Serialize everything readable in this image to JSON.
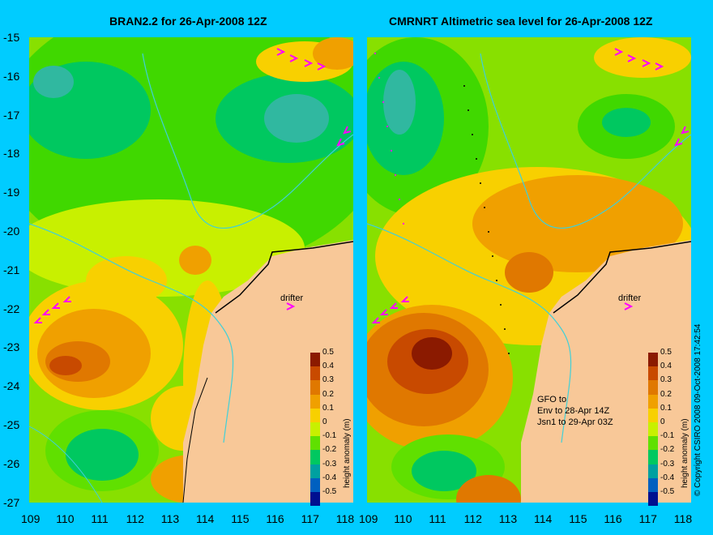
{
  "left_panel": {
    "title": "BRAN2.2 for 26-Apr-2008 12Z",
    "drifter_label": "drifter"
  },
  "right_panel": {
    "title": "CMRNRT Altimetric sea level  for 26-Apr-2008 12Z",
    "drifter_label": "drifter",
    "satellite_note": [
      "GFO to",
      "Env to 28-Apr 14Z",
      "Jsn1 to 29-Apr 03Z"
    ]
  },
  "y_axis_ticks": [
    "-15",
    "-16",
    "-17",
    "-18",
    "-19",
    "-20",
    "-21",
    "-22",
    "-23",
    "-24",
    "-25",
    "-26",
    "-27"
  ],
  "x_axis_ticks_left": [
    "109",
    "110",
    "111",
    "112",
    "113",
    "114",
    "115",
    "116",
    "117",
    "118"
  ],
  "x_axis_ticks_right": [
    "109",
    "110",
    "111",
    "112",
    "113",
    "114",
    "115",
    "116",
    "117",
    "118"
  ],
  "colorbar": {
    "labels": [
      "0.5",
      "0.4",
      "0.3",
      "0.2",
      "0.1",
      "0",
      "-0.1",
      "-0.2",
      "-0.3",
      "-0.4",
      "-0.5"
    ],
    "title": "height anomaly (m)",
    "colors": [
      "#8b1a00",
      "#c84a00",
      "#e07800",
      "#f0a000",
      "#f8d000",
      "#c8f000",
      "#60e000",
      "#00c860",
      "#00a0a0",
      "#0060c0",
      "#001090"
    ]
  },
  "copyright": "© Copyright CSIRO 2008   09-Oct-2008 17:42:54",
  "colors": {
    "background": "#00ccff",
    "land": "#f8c898",
    "arrows": "#ff00ff",
    "bathymetry": "#40d0d8"
  }
}
